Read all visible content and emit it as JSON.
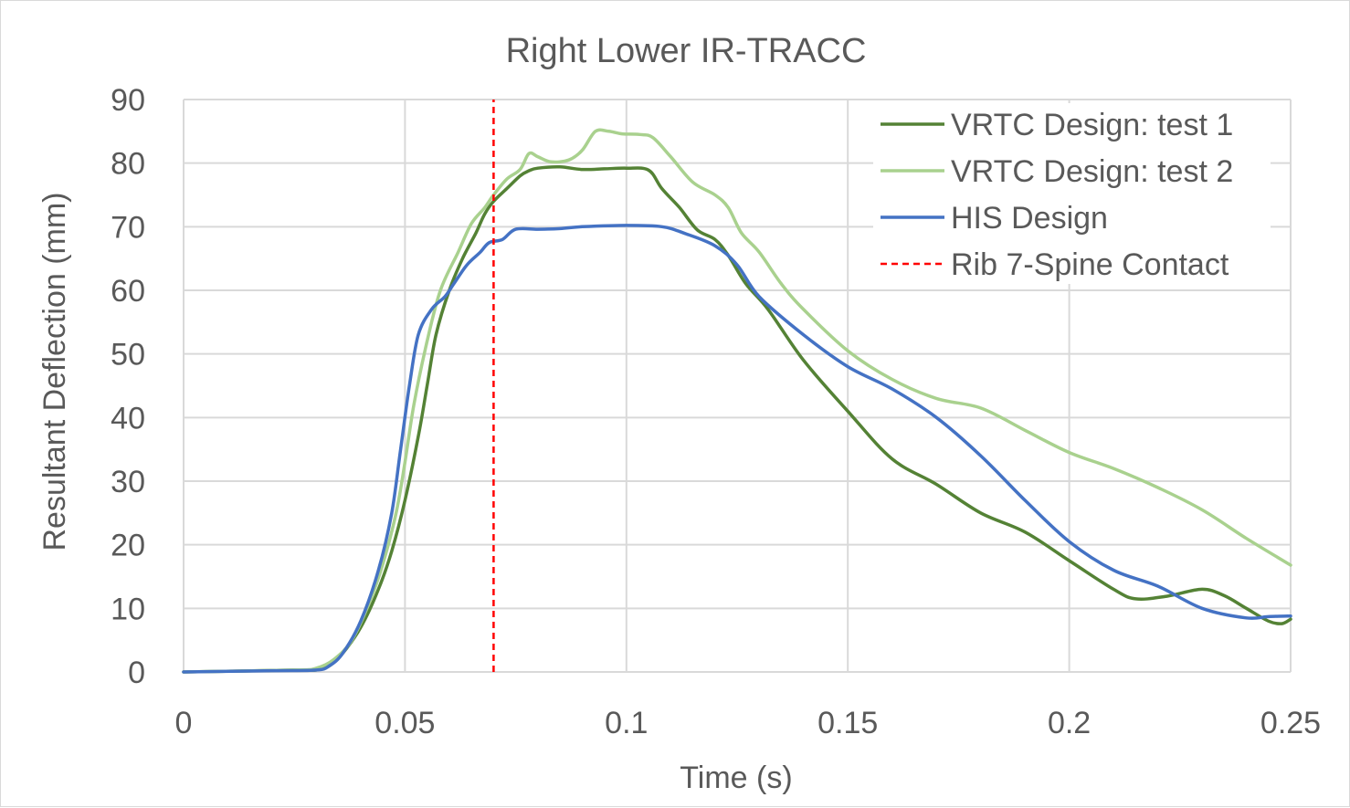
{
  "chart_data": {
    "type": "line",
    "title": "Right Lower IR-TRACC",
    "xlabel": "Time (s)",
    "ylabel": "Resultant Deflection (mm)",
    "xlim": [
      0,
      0.25
    ],
    "ylim": [
      0,
      90
    ],
    "x_ticks": [
      0,
      0.05,
      0.1,
      0.15,
      0.2,
      0.25
    ],
    "x_tick_labels": [
      "0",
      "0.05",
      "0.1",
      "0.15",
      "0.2",
      "0.25"
    ],
    "y_ticks": [
      0,
      10,
      20,
      30,
      40,
      50,
      60,
      70,
      80,
      90
    ],
    "y_tick_labels": [
      "0",
      "10",
      "20",
      "30",
      "40",
      "50",
      "60",
      "70",
      "80",
      "90"
    ],
    "grid": true,
    "legend_position": "top-right",
    "series": [
      {
        "name": "VRTC Design: test 1",
        "color": "#548235",
        "dash": "solid",
        "points": [
          [
            0,
            0
          ],
          [
            0.025,
            0.3
          ],
          [
            0.03,
            0.3
          ],
          [
            0.033,
            1
          ],
          [
            0.036,
            3
          ],
          [
            0.04,
            7
          ],
          [
            0.044,
            13
          ],
          [
            0.047,
            19
          ],
          [
            0.05,
            27
          ],
          [
            0.053,
            37
          ],
          [
            0.055,
            45
          ],
          [
            0.057,
            53
          ],
          [
            0.06,
            60
          ],
          [
            0.063,
            65
          ],
          [
            0.066,
            69
          ],
          [
            0.068,
            72
          ],
          [
            0.07,
            74
          ],
          [
            0.073,
            76
          ],
          [
            0.076,
            78
          ],
          [
            0.078,
            78.8
          ],
          [
            0.08,
            79.2
          ],
          [
            0.085,
            79.4
          ],
          [
            0.09,
            79
          ],
          [
            0.095,
            79.1
          ],
          [
            0.1,
            79.2
          ],
          [
            0.105,
            78.9
          ],
          [
            0.108,
            76
          ],
          [
            0.112,
            73
          ],
          [
            0.116,
            69.5
          ],
          [
            0.12,
            68
          ],
          [
            0.123,
            65.5
          ],
          [
            0.127,
            61
          ],
          [
            0.132,
            57
          ],
          [
            0.14,
            49
          ],
          [
            0.15,
            41
          ],
          [
            0.16,
            33.5
          ],
          [
            0.17,
            29.5
          ],
          [
            0.18,
            25
          ],
          [
            0.19,
            22
          ],
          [
            0.2,
            17.5
          ],
          [
            0.21,
            13
          ],
          [
            0.215,
            11.5
          ],
          [
            0.222,
            11.9
          ],
          [
            0.23,
            13
          ],
          [
            0.235,
            12
          ],
          [
            0.24,
            10
          ],
          [
            0.245,
            8
          ],
          [
            0.248,
            7.6
          ],
          [
            0.25,
            8.3
          ]
        ]
      },
      {
        "name": "VRTC Design: test 2",
        "color": "#a9d18e",
        "dash": "solid",
        "points": [
          [
            0,
            0
          ],
          [
            0.025,
            0.3
          ],
          [
            0.03,
            0.6
          ],
          [
            0.034,
            2
          ],
          [
            0.038,
            5
          ],
          [
            0.042,
            11
          ],
          [
            0.045,
            17
          ],
          [
            0.048,
            25
          ],
          [
            0.05,
            33
          ],
          [
            0.052,
            42
          ],
          [
            0.055,
            52
          ],
          [
            0.058,
            60
          ],
          [
            0.062,
            66
          ],
          [
            0.065,
            70.5
          ],
          [
            0.068,
            73
          ],
          [
            0.07,
            75
          ],
          [
            0.073,
            77.5
          ],
          [
            0.076,
            79
          ],
          [
            0.078,
            81.5
          ],
          [
            0.08,
            81
          ],
          [
            0.083,
            80.2
          ],
          [
            0.087,
            80.5
          ],
          [
            0.09,
            82
          ],
          [
            0.093,
            85
          ],
          [
            0.096,
            85
          ],
          [
            0.099,
            84.6
          ],
          [
            0.103,
            84.5
          ],
          [
            0.106,
            84
          ],
          [
            0.11,
            81
          ],
          [
            0.115,
            77
          ],
          [
            0.12,
            75
          ],
          [
            0.123,
            73
          ],
          [
            0.126,
            69
          ],
          [
            0.13,
            66
          ],
          [
            0.135,
            61
          ],
          [
            0.14,
            57
          ],
          [
            0.15,
            50.5
          ],
          [
            0.16,
            46
          ],
          [
            0.17,
            43
          ],
          [
            0.18,
            41.5
          ],
          [
            0.19,
            38
          ],
          [
            0.2,
            34.5
          ],
          [
            0.21,
            32
          ],
          [
            0.22,
            29
          ],
          [
            0.23,
            25.5
          ],
          [
            0.24,
            21
          ],
          [
            0.25,
            16.8
          ]
        ]
      },
      {
        "name": "HIS Design",
        "color": "#4472c4",
        "dash": "solid",
        "points": [
          [
            0,
            0
          ],
          [
            0.02,
            0.2
          ],
          [
            0.03,
            0.3
          ],
          [
            0.033,
            1
          ],
          [
            0.036,
            3
          ],
          [
            0.04,
            8
          ],
          [
            0.044,
            16
          ],
          [
            0.047,
            25
          ],
          [
            0.049,
            35
          ],
          [
            0.051,
            45
          ],
          [
            0.053,
            53
          ],
          [
            0.056,
            57
          ],
          [
            0.059,
            59
          ],
          [
            0.061,
            61
          ],
          [
            0.064,
            64
          ],
          [
            0.067,
            66
          ],
          [
            0.069,
            67.5
          ],
          [
            0.072,
            68
          ],
          [
            0.075,
            69.6
          ],
          [
            0.08,
            69.6
          ],
          [
            0.085,
            69.7
          ],
          [
            0.09,
            70
          ],
          [
            0.1,
            70.2
          ],
          [
            0.108,
            70
          ],
          [
            0.113,
            69
          ],
          [
            0.12,
            67
          ],
          [
            0.125,
            64
          ],
          [
            0.13,
            59
          ],
          [
            0.14,
            53
          ],
          [
            0.15,
            48
          ],
          [
            0.16,
            44.5
          ],
          [
            0.17,
            40
          ],
          [
            0.18,
            34
          ],
          [
            0.19,
            27
          ],
          [
            0.2,
            20.5
          ],
          [
            0.21,
            16
          ],
          [
            0.22,
            13.5
          ],
          [
            0.23,
            10
          ],
          [
            0.24,
            8.5
          ],
          [
            0.245,
            8.7
          ],
          [
            0.25,
            8.8
          ]
        ]
      },
      {
        "name": "Rib 7-Spine Contact",
        "color": "#ff0000",
        "dash": "dashed",
        "points": [
          [
            0.07,
            0
          ],
          [
            0.07,
            90
          ]
        ]
      }
    ]
  }
}
